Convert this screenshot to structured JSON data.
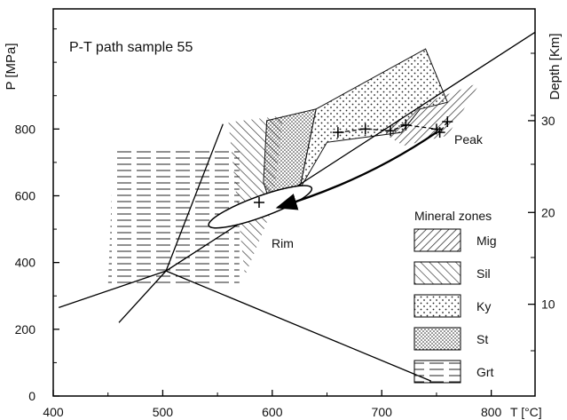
{
  "chart_data": {
    "type": "scatter",
    "title": "P-T path sample 55",
    "xlabel": "T [°C]",
    "ylabel": "P [MPa]",
    "y2label": "Depth [Km]",
    "xlim": [
      400,
      840
    ],
    "ylim": [
      0,
      1160
    ],
    "x_ticks": [
      400,
      500,
      600,
      700,
      800
    ],
    "y_ticks": [
      0,
      200,
      400,
      600,
      800
    ],
    "y2_ticks": [
      {
        "label": "10",
        "pressure": 275
      },
      {
        "label": "20",
        "pressure": 550
      },
      {
        "label": "30",
        "pressure": 825
      }
    ],
    "annotations": {
      "peak": "Peak",
      "rim": "Rim"
    },
    "legend": {
      "title": "Mineral zones",
      "placement": "bottom-right",
      "entries": [
        {
          "name": "Mig",
          "pattern": "hatch-back"
        },
        {
          "name": "Sil",
          "pattern": "hatch-forward"
        },
        {
          "name": "Ky",
          "pattern": "dots-sparse"
        },
        {
          "name": "St",
          "pattern": "dots-dense"
        },
        {
          "name": "Grt",
          "pattern": "horizontal-dashes"
        }
      ]
    },
    "series": [
      {
        "name": "Peak",
        "points": [
          [
            660,
            790
          ],
          [
            685,
            800
          ],
          [
            708,
            795
          ],
          [
            722,
            812
          ],
          [
            750,
            800
          ],
          [
            753,
            790
          ],
          [
            760,
            822
          ]
        ]
      },
      {
        "name": "Rim",
        "points": [
          [
            588,
            580
          ]
        ]
      }
    ],
    "path_arrow": {
      "from": [
        750,
        790
      ],
      "to": [
        605,
        565
      ]
    },
    "rim_ellipse": {
      "center": [
        589,
        567
      ],
      "t_radius": 50,
      "p_radius": 95,
      "rotation_deg": -20
    },
    "reaction_lines": [
      [
        [
          405,
          265
        ],
        [
          503,
          375
        ],
        [
          840,
          1090
        ]
      ],
      [
        [
          503,
          375
        ],
        [
          460,
          220
        ],
        [
          503,
          375
        ],
        [
          555,
          815
        ]
      ],
      [
        [
          503,
          375
        ],
        [
          745,
          45
        ]
      ]
    ],
    "zones": {
      "grt": [
        [
          455,
          735
        ],
        [
          570,
          735
        ],
        [
          570,
          330
        ],
        [
          450,
          330
        ]
      ],
      "st": [
        [
          595,
          825
        ],
        [
          640,
          860
        ],
        [
          625,
          620
        ],
        [
          600,
          560
        ],
        [
          592,
          640
        ]
      ],
      "ky": [
        [
          640,
          860
        ],
        [
          740,
          1040
        ],
        [
          760,
          880
        ],
        [
          735,
          860
        ],
        [
          718,
          790
        ],
        [
          650,
          760
        ],
        [
          625,
          620
        ]
      ],
      "sil": [
        [
          560,
          820
        ],
        [
          610,
          840
        ],
        [
          600,
          560
        ],
        [
          575,
          360
        ]
      ],
      "mig": [
        [
          740,
          880
        ],
        [
          790,
          940
        ],
        [
          760,
          780
        ],
        [
          720,
          750
        ],
        [
          700,
          790
        ]
      ]
    }
  }
}
